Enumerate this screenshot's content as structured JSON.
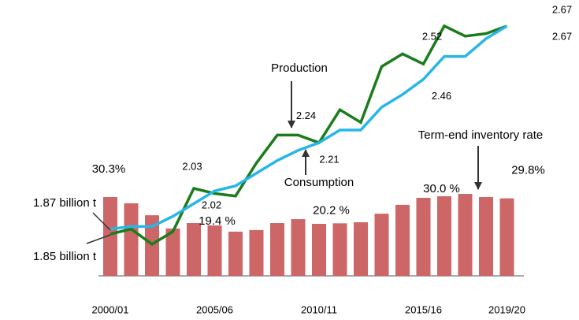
{
  "chart_data": {
    "type": "bar-line",
    "categories": [
      "2000/01",
      null,
      null,
      null,
      null,
      "2005/06",
      null,
      null,
      null,
      null,
      "2010/11",
      null,
      null,
      null,
      null,
      "2015/16",
      null,
      null,
      null,
      "2019/20"
    ],
    "bars": {
      "name": "Term-end inventory rate",
      "color": "#cd6667",
      "values": [
        30.3,
        27.9,
        23.3,
        18.2,
        20.3,
        19.4,
        17.0,
        17.6,
        20.3,
        21.8,
        20.0,
        20.2,
        20.6,
        23.9,
        27.3,
        30.0,
        30.6,
        31.5,
        30.3,
        29.8
      ],
      "value_labels": [
        "30.3%",
        null,
        null,
        null,
        null,
        "19.4 %",
        null,
        null,
        null,
        null,
        null,
        "20.2 %",
        null,
        null,
        null,
        "30.0 %",
        null,
        null,
        null,
        "29.8%"
      ]
    },
    "series": [
      {
        "name": "Production",
        "color": "#1a7d1a",
        "values": [
          1.85,
          1.87,
          1.81,
          1.86,
          2.03,
          2.01,
          2.0,
          2.13,
          2.24,
          2.24,
          2.21,
          2.34,
          2.29,
          2.51,
          2.56,
          2.52,
          2.67,
          2.63,
          2.64,
          2.67
        ],
        "value_labels": [
          null,
          null,
          null,
          null,
          "2.03",
          null,
          null,
          null,
          null,
          "2.24",
          null,
          null,
          null,
          null,
          null,
          "2.52",
          null,
          null,
          null,
          "2.67"
        ]
      },
      {
        "name": "Consumption",
        "color": "#29b5e8",
        "values": [
          1.87,
          1.88,
          1.88,
          1.92,
          1.97,
          2.02,
          2.04,
          2.09,
          2.14,
          2.18,
          2.21,
          2.26,
          2.26,
          2.35,
          2.4,
          2.46,
          2.55,
          2.55,
          2.62,
          2.67
        ],
        "value_labels": [
          null,
          null,
          null,
          null,
          null,
          "2.02",
          null,
          null,
          null,
          null,
          "2.21",
          null,
          null,
          null,
          null,
          "2.46",
          null,
          null,
          null,
          "2.67"
        ]
      }
    ],
    "annotations": [
      "Production",
      "Consumption",
      "Term-end inventory rate",
      "1.87 billion t",
      "1.85 billion t"
    ]
  }
}
